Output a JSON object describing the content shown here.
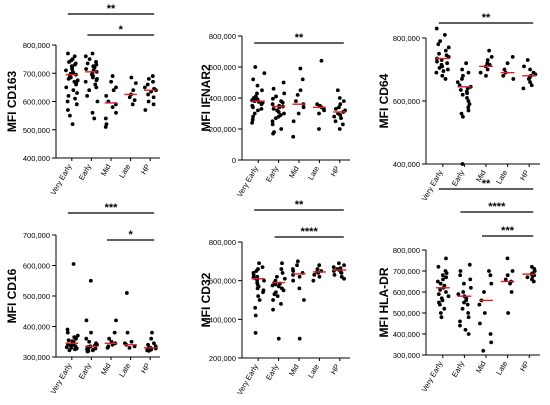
{
  "chart_data": [
    {
      "type": "scatter",
      "ylabel": "MFI CD163",
      "categories": [
        "Very Early",
        "Early",
        "Mid",
        "Late",
        "HP"
      ],
      "ylim": [
        400000,
        800000
      ],
      "yticks": [
        400000,
        500000,
        600000,
        700000,
        800000
      ],
      "tick_labels": [
        "400,000",
        "500,000",
        "600,000",
        "700,000",
        "800,000"
      ],
      "medians": [
        695000,
        705000,
        595000,
        625000,
        640000
      ],
      "points": [
        [
          770000,
          760000,
          750000,
          745000,
          740000,
          735000,
          730000,
          725000,
          720000,
          715000,
          710000,
          705000,
          700000,
          698000,
          695000,
          690000,
          685000,
          680000,
          675000,
          670000,
          665000,
          660000,
          650000,
          640000,
          630000,
          620000,
          610000,
          600000,
          590000,
          570000,
          550000,
          520000
        ],
        [
          770000,
          760000,
          750000,
          740000,
          735000,
          730000,
          725000,
          720000,
          715000,
          710000,
          705000,
          700000,
          695000,
          690000,
          685000,
          680000,
          675000,
          670000,
          660000,
          650000,
          640000,
          620000,
          600000,
          560000,
          540000
        ],
        [
          690000,
          670000,
          650000,
          640000,
          620000,
          600000,
          590000,
          580000,
          560000,
          540000,
          520000,
          510000
        ],
        [
          685000,
          665000,
          640000,
          625000,
          615000,
          605000,
          590000
        ],
        [
          690000,
          680000,
          670000,
          660000,
          650000,
          645000,
          640000,
          635000,
          625000,
          615000,
          600000,
          590000,
          570000
        ]
      ],
      "significance": [
        {
          "label": "**",
          "from": "Very Early",
          "to": "HP"
        },
        {
          "label": "*",
          "from": "Early",
          "to": "HP"
        }
      ]
    },
    {
      "type": "scatter",
      "ylabel": "MFI IFNAR2",
      "categories": [
        "Very Early",
        "Early",
        "Mid",
        "Late",
        "HP"
      ],
      "ylim": [
        0,
        800000
      ],
      "yticks": [
        0,
        200000,
        400000,
        600000,
        800000
      ],
      "tick_labels": [
        "0",
        "200,000",
        "400,000",
        "600,000",
        "800,000"
      ],
      "medians": [
        380000,
        345000,
        360000,
        340000,
        310000
      ],
      "points": [
        [
          600000,
          560000,
          520000,
          480000,
          450000,
          430000,
          410000,
          400000,
          395000,
          390000,
          385000,
          380000,
          375000,
          370000,
          360000,
          350000,
          340000,
          330000,
          320000,
          300000,
          280000,
          260000,
          240000
        ],
        [
          500000,
          460000,
          430000,
          410000,
          395000,
          380000,
          370000,
          360000,
          350000,
          345000,
          340000,
          330000,
          320000,
          310000,
          300000,
          290000,
          280000,
          270000,
          250000,
          230000,
          200000,
          180000,
          170000
        ],
        [
          590000,
          520000,
          450000,
          420000,
          380000,
          360000,
          340000,
          300000,
          250000,
          150000
        ],
        [
          640000,
          360000,
          350000,
          340000,
          330000,
          320000,
          300000,
          200000
        ],
        [
          450000,
          400000,
          380000,
          360000,
          340000,
          330000,
          320000,
          310000,
          300000,
          290000,
          280000,
          270000,
          250000,
          230000,
          200000
        ]
      ],
      "significance": [
        {
          "label": "**",
          "from": "Very Early",
          "to": "HP"
        }
      ]
    },
    {
      "type": "scatter",
      "ylabel": "MFI CD64",
      "categories": [
        "Very Early",
        "Early",
        "Mid",
        "Late",
        "HP"
      ],
      "ylim": [
        400000,
        800000
      ],
      "yticks": [
        400000,
        600000,
        800000
      ],
      "tick_labels": [
        "400,000",
        "600,000",
        "800,000"
      ],
      "medians": [
        735000,
        645000,
        710000,
        690000,
        680000
      ],
      "points": [
        [
          830000,
          810000,
          790000,
          780000,
          770000,
          760000,
          750000,
          745000,
          740000,
          735000,
          730000,
          725000,
          720000,
          715000,
          710000,
          705000,
          700000,
          695000,
          690000,
          680000,
          670000
        ],
        [
          720000,
          700000,
          690000,
          680000,
          670000,
          660000,
          650000,
          645000,
          640000,
          635000,
          630000,
          625000,
          620000,
          610000,
          600000,
          590000,
          580000,
          570000,
          560000,
          550000,
          400000
        ],
        [
          760000,
          740000,
          730000,
          720000,
          715000,
          710000,
          700000,
          690000,
          680000
        ],
        [
          740000,
          720000,
          700000,
          690000,
          680000,
          670000
        ],
        [
          730000,
          710000,
          700000,
          690000,
          685000,
          680000,
          675000,
          670000,
          660000,
          650000,
          640000
        ]
      ],
      "significance": [
        {
          "label": "**",
          "from": "Very Early",
          "to": "HP"
        }
      ]
    },
    {
      "type": "scatter",
      "ylabel": "MFI CD16",
      "categories": [
        "Very Early",
        "Early",
        "Mid",
        "Late",
        "HP"
      ],
      "ylim": [
        300000,
        700000
      ],
      "yticks": [
        300000,
        400000,
        500000,
        600000,
        700000
      ],
      "tick_labels": [
        "300,000",
        "400,000",
        "500,000",
        "600,000",
        "700,000"
      ],
      "medians": [
        345000,
        335000,
        345000,
        340000,
        330000
      ],
      "points": [
        [
          605000,
          390000,
          380000,
          370000,
          365000,
          360000,
          355000,
          352000,
          350000,
          348000,
          345000,
          342000,
          340000,
          338000,
          335000,
          332000,
          330000,
          328000,
          325000,
          322000
        ],
        [
          550000,
          420000,
          380000,
          360000,
          350000,
          345000,
          340000,
          338000,
          335000,
          333000,
          330000,
          328000,
          326000,
          324000,
          322000,
          320000,
          318000
        ],
        [
          420000,
          380000,
          360000,
          350000,
          345000,
          340000,
          335000,
          330000
        ],
        [
          510000,
          380000,
          350000,
          345000,
          340000,
          335000,
          330000
        ],
        [
          380000,
          360000,
          345000,
          340000,
          335000,
          332000,
          330000,
          328000,
          326000,
          324000,
          322000,
          320000
        ]
      ],
      "significance": [
        {
          "label": "***",
          "from": "Very Early",
          "to": "HP"
        },
        {
          "label": "*",
          "from": "Mid",
          "to": "HP"
        }
      ]
    },
    {
      "type": "scatter",
      "ylabel": "MFI CD32",
      "categories": [
        "Very Early",
        "Early",
        "Mid",
        "Late",
        "HP"
      ],
      "ylim": [
        200000,
        800000
      ],
      "yticks": [
        200000,
        400000,
        600000,
        800000
      ],
      "tick_labels": [
        "200,000",
        "400,000",
        "600,000",
        "800,000"
      ],
      "medians": [
        610000,
        590000,
        635000,
        645000,
        655000
      ],
      "points": [
        [
          690000,
          670000,
          660000,
          650000,
          640000,
          630000,
          620000,
          615000,
          610000,
          605000,
          600000,
          590000,
          580000,
          570000,
          560000,
          550000,
          540000,
          520000,
          500000,
          460000,
          420000,
          330000
        ],
        [
          690000,
          660000,
          640000,
          620000,
          610000,
          600000,
          590000,
          585000,
          580000,
          575000,
          570000,
          560000,
          550000,
          540000,
          530000,
          520000,
          500000,
          480000,
          450000,
          300000
        ],
        [
          700000,
          680000,
          660000,
          650000,
          640000,
          630000,
          620000,
          600000,
          560000,
          500000,
          300000
        ],
        [
          680000,
          660000,
          650000,
          645000,
          640000,
          630000,
          620000,
          600000
        ],
        [
          690000,
          680000,
          670000,
          665000,
          660000,
          655000,
          650000,
          645000,
          640000,
          630000,
          620000,
          610000
        ]
      ],
      "significance": [
        {
          "label": "**",
          "from": "Very Early",
          "to": "HP"
        },
        {
          "label": "****",
          "from": "Early",
          "to": "HP"
        }
      ]
    },
    {
      "type": "scatter",
      "ylabel": "MFI HLA-DR",
      "categories": [
        "Very Early",
        "Early",
        "Mid",
        "Late",
        "HP"
      ],
      "ylim": [
        300000,
        800000
      ],
      "yticks": [
        300000,
        400000,
        500000,
        600000,
        700000,
        800000
      ],
      "tick_labels": [
        "300,000",
        "400,000",
        "500,000",
        "600,000",
        "700,000",
        "800,000"
      ],
      "medians": [
        620000,
        580000,
        560000,
        650000,
        685000
      ],
      "points": [
        [
          760000,
          720000,
          700000,
          690000,
          680000,
          670000,
          660000,
          650000,
          640000,
          630000,
          620000,
          610000,
          600000,
          590000,
          580000,
          570000,
          560000,
          550000,
          540000,
          520000,
          500000,
          480000
        ],
        [
          730000,
          700000,
          680000,
          660000,
          640000,
          620000,
          600000,
          590000,
          580000,
          570000,
          560000,
          550000,
          540000,
          520000,
          500000,
          480000,
          460000,
          440000,
          420000,
          400000
        ],
        [
          700000,
          680000,
          640000,
          600000,
          560000,
          540000,
          500000,
          450000,
          400000,
          360000,
          320000
        ],
        [
          760000,
          700000,
          680000,
          660000,
          650000,
          640000,
          600000,
          500000
        ],
        [
          720000,
          710000,
          700000,
          690000,
          685000,
          680000,
          675000,
          670000,
          660000,
          650000
        ]
      ],
      "significance": [
        {
          "label": "**",
          "from": "Very Early",
          "to": "HP"
        },
        {
          "label": "****",
          "from": "Early",
          "to": "HP"
        },
        {
          "label": "***",
          "from": "Mid",
          "to": "HP"
        }
      ]
    }
  ]
}
